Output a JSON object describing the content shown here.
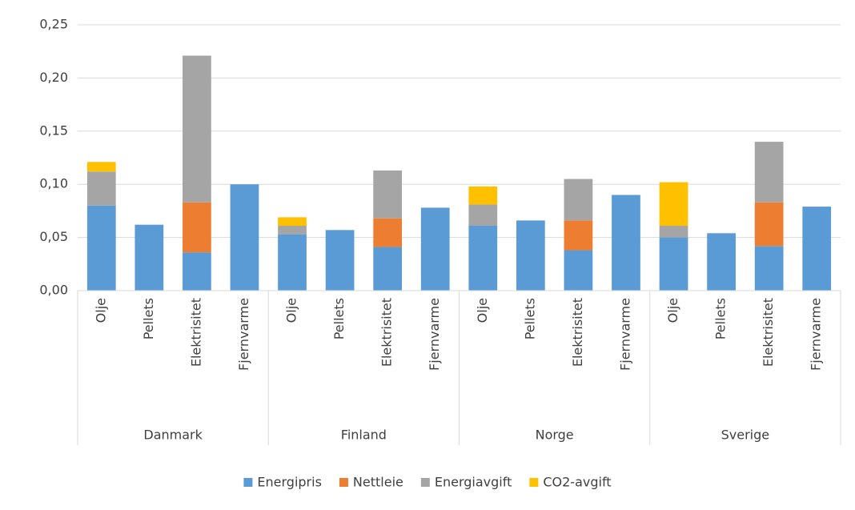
{
  "chart_data": {
    "type": "stacked-bar",
    "categories": [
      "Olje",
      "Pellets",
      "Elektrisitet",
      "Fjernvarme",
      "Olje",
      "Pellets",
      "Elektrisitet",
      "Fjernvarme",
      "Olje",
      "Pellets",
      "Elektrisitet",
      "Fjernvarme",
      "Olje",
      "Pellets",
      "Elektrisitet",
      "Fjernvarme"
    ],
    "groups": [
      "Danmark",
      "Finland",
      "Norge",
      "Sverige"
    ],
    "series": [
      {
        "name": "Energipris",
        "color": "#5b9bd5",
        "values": [
          0.08,
          0.062,
          0.036,
          0.1,
          0.053,
          0.057,
          0.041,
          0.078,
          0.061,
          0.066,
          0.038,
          0.09,
          0.05,
          0.054,
          0.042,
          0.079
        ]
      },
      {
        "name": "Nettleie",
        "color": "#ed7d31",
        "values": [
          null,
          null,
          0.047,
          null,
          null,
          null,
          0.027,
          null,
          null,
          null,
          0.028,
          null,
          null,
          null,
          0.041,
          null
        ]
      },
      {
        "name": "Energiavgift",
        "color": "#a5a5a5",
        "values": [
          0.032,
          null,
          0.138,
          null,
          0.008,
          null,
          0.045,
          null,
          0.02,
          null,
          0.039,
          null,
          0.011,
          null,
          0.057,
          null
        ]
      },
      {
        "name": "CO2-avgift",
        "color": "#ffc000",
        "values": [
          0.009,
          null,
          null,
          null,
          0.008,
          null,
          null,
          null,
          0.017,
          null,
          null,
          null,
          0.041,
          null,
          null,
          null
        ]
      }
    ],
    "ylim": [
      0,
      0.25
    ],
    "yticks": [
      {
        "value": 0,
        "label": "0,00"
      },
      {
        "value": 0.05,
        "label": "0,05"
      },
      {
        "value": 0.1,
        "label": "0,10"
      },
      {
        "value": 0.15,
        "label": "0,15"
      },
      {
        "value": 0.2,
        "label": "0,20"
      },
      {
        "value": 0.25,
        "label": "0,25"
      }
    ],
    "grid": true,
    "legend": "bottom"
  }
}
